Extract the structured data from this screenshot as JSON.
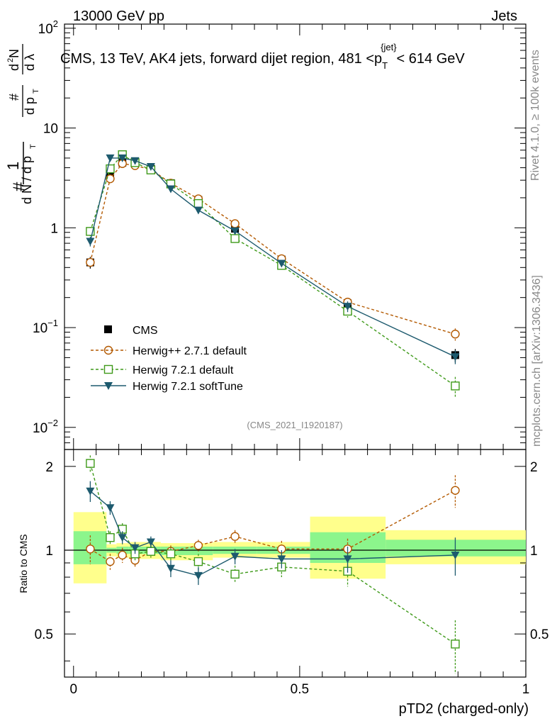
{
  "header": {
    "left": "13000 GeV pp",
    "right": "Jets"
  },
  "side_labels": {
    "rivet": "Rivet 4.1.0, ≥ 100k events",
    "mcplots": "mcplots.cern.ch [arXiv:1306.3436]"
  },
  "analysis_id": "(CMS_2021_I1920187)",
  "colors": {
    "cms": "#000000",
    "herwigpp": "#b35900",
    "herwig721": "#3f9a1a",
    "softtune": "#1d5a6e",
    "band_outer": "#ffff8c",
    "band_inner": "#8cf58c"
  },
  "chart_data": [
    {
      "type": "scatter",
      "title": "CMS, 13 TeV, AK4 jets, forward dijet region, 481 <p_T^{jet}< 614 GeV",
      "title_parts": {
        "main": "CMS, 13 TeV, AK4 jets, forward dijet region, 481 <p",
        "sub": "T",
        "sup": "{jet}",
        "tail": "< 614 GeV"
      },
      "ylabel": "1/(dN/dp_T) d²N/(dp_T dλ)",
      "yscale": "log",
      "ylim": [
        0.006,
        110
      ],
      "xlim": [
        -0.02,
        1.0
      ],
      "ytick_labels": [
        {
          "value": 100,
          "base": "10",
          "exp": "2"
        },
        {
          "value": 10,
          "base": "10",
          "exp": ""
        },
        {
          "value": 1,
          "base": "1",
          "exp": ""
        },
        {
          "value": 0.1,
          "base": "10",
          "exp": "−1"
        },
        {
          "value": 0.01,
          "base": "10",
          "exp": "−2"
        }
      ],
      "x": [
        0.037,
        0.081,
        0.108,
        0.136,
        0.171,
        0.215,
        0.276,
        0.357,
        0.46,
        0.606,
        0.844
      ],
      "series": [
        {
          "name": "CMS",
          "style": "data",
          "values": [
            0.45,
            3.5,
            4.5,
            4.6,
            3.9,
            2.8,
            1.9,
            0.98,
            0.48,
            0.175,
            0.053
          ],
          "err": [
            0.06,
            0.3,
            0.3,
            0.3,
            0.3,
            0.2,
            0.12,
            0.06,
            0.035,
            0.02,
            0.008
          ]
        },
        {
          "name": "Herwig++ 2.7.1 default",
          "style": "circle",
          "values": [
            0.45,
            3.1,
            4.4,
            4.2,
            3.85,
            2.8,
            1.95,
            1.1,
            0.49,
            0.18,
            0.086
          ],
          "err": [
            0.04,
            0.2,
            0.25,
            0.2,
            0.2,
            0.15,
            0.1,
            0.06,
            0.03,
            0.015,
            0.012
          ]
        },
        {
          "name": "Herwig 7.2.1 default",
          "style": "square",
          "values": [
            0.92,
            3.9,
            5.4,
            4.5,
            3.8,
            2.75,
            1.75,
            0.78,
            0.42,
            0.146,
            0.026
          ],
          "err": [
            0.1,
            0.3,
            0.3,
            0.25,
            0.2,
            0.15,
            0.1,
            0.05,
            0.03,
            0.02,
            0.006
          ]
        },
        {
          "name": "Herwig 7.2.1 softTune",
          "style": "triangle",
          "values": [
            0.73,
            5.0,
            5.0,
            4.7,
            4.1,
            2.45,
            1.5,
            0.93,
            0.44,
            0.163,
            0.051
          ],
          "err": [
            0.08,
            0.3,
            0.3,
            0.25,
            0.2,
            0.15,
            0.1,
            0.06,
            0.03,
            0.02,
            0.008
          ]
        }
      ],
      "legend": [
        {
          "label": "CMS",
          "style": "data"
        },
        {
          "label": "Herwig++ 2.7.1 default",
          "style": "circle"
        },
        {
          "label": "Herwig 7.2.1 default",
          "style": "square"
        },
        {
          "label": "Herwig 7.2.1 softTune",
          "style": "triangle"
        }
      ],
      "legend_position": "bottom-left"
    },
    {
      "type": "scatter",
      "title": "",
      "ylabel": "Ratio to CMS",
      "xlabel": "pTD2 (charged-only)",
      "xlim": [
        -0.02,
        1.0
      ],
      "ylim": [
        0.35,
        2.3
      ],
      "yscale": "log",
      "ytick_labels": [
        {
          "value": 2,
          "label": "2"
        },
        {
          "value": 1,
          "label": "1"
        },
        {
          "value": 0.5,
          "label": "0.5"
        }
      ],
      "xtick_labels": [
        {
          "value": 0,
          "label": "0"
        },
        {
          "value": 0.5,
          "label": "0.5"
        },
        {
          "value": 1,
          "label": "1"
        }
      ],
      "bands": [
        {
          "x0": 0.0,
          "x1": 0.073,
          "outer": [
            0.76,
            1.37
          ],
          "inner": [
            0.89,
            1.17
          ]
        },
        {
          "x0": 0.073,
          "x1": 0.095,
          "outer": [
            0.95,
            1.05
          ],
          "inner": [
            0.98,
            1.02
          ]
        },
        {
          "x0": 0.095,
          "x1": 0.122,
          "outer": [
            0.94,
            1.06
          ],
          "inner": [
            0.97,
            1.03
          ]
        },
        {
          "x0": 0.122,
          "x1": 0.15,
          "outer": [
            0.93,
            1.07
          ],
          "inner": [
            0.97,
            1.03
          ]
        },
        {
          "x0": 0.15,
          "x1": 0.193,
          "outer": [
            0.93,
            1.07
          ],
          "inner": [
            0.97,
            1.03
          ]
        },
        {
          "x0": 0.193,
          "x1": 0.308,
          "outer": [
            0.92,
            1.06
          ],
          "inner": [
            0.96,
            1.03
          ]
        },
        {
          "x0": 0.308,
          "x1": 0.406,
          "outer": [
            0.94,
            1.07
          ],
          "inner": [
            0.97,
            1.03
          ]
        },
        {
          "x0": 0.406,
          "x1": 0.523,
          "outer": [
            0.94,
            1.07
          ],
          "inner": [
            0.97,
            1.03
          ]
        },
        {
          "x0": 0.523,
          "x1": 0.69,
          "outer": [
            0.79,
            1.32
          ],
          "inner": [
            0.9,
            1.16
          ]
        },
        {
          "x0": 0.69,
          "x1": 1.0,
          "outer": [
            0.89,
            1.18
          ],
          "inner": [
            0.95,
            1.09
          ]
        }
      ],
      "x": [
        0.037,
        0.081,
        0.108,
        0.136,
        0.171,
        0.215,
        0.276,
        0.357,
        0.46,
        0.606,
        0.844
      ],
      "series": [
        {
          "name": "Herwig++ 2.7.1 default",
          "style": "circle",
          "values": [
            1.01,
            0.91,
            0.96,
            0.92,
            0.99,
            0.99,
            1.04,
            1.12,
            1.01,
            1.01,
            1.64
          ],
          "err": [
            0.12,
            0.06,
            0.06,
            0.05,
            0.05,
            0.05,
            0.05,
            0.06,
            0.07,
            0.09,
            0.22
          ]
        },
        {
          "name": "Herwig 7.2.1 default",
          "style": "square",
          "values": [
            2.05,
            1.11,
            1.19,
            0.97,
            0.99,
            0.97,
            0.91,
            0.82,
            0.87,
            0.84,
            0.46
          ],
          "err": [
            0.14,
            0.06,
            0.06,
            0.05,
            0.05,
            0.05,
            0.06,
            0.06,
            0.07,
            0.1,
            0.1
          ]
        },
        {
          "name": "Herwig 7.2.1 softTune",
          "style": "triangle",
          "values": [
            1.63,
            1.42,
            1.11,
            1.02,
            1.07,
            0.86,
            0.81,
            0.95,
            0.93,
            0.93,
            0.96
          ],
          "err": [
            0.14,
            0.08,
            0.06,
            0.05,
            0.05,
            0.06,
            0.06,
            0.06,
            0.07,
            0.1,
            0.15
          ]
        }
      ]
    }
  ]
}
